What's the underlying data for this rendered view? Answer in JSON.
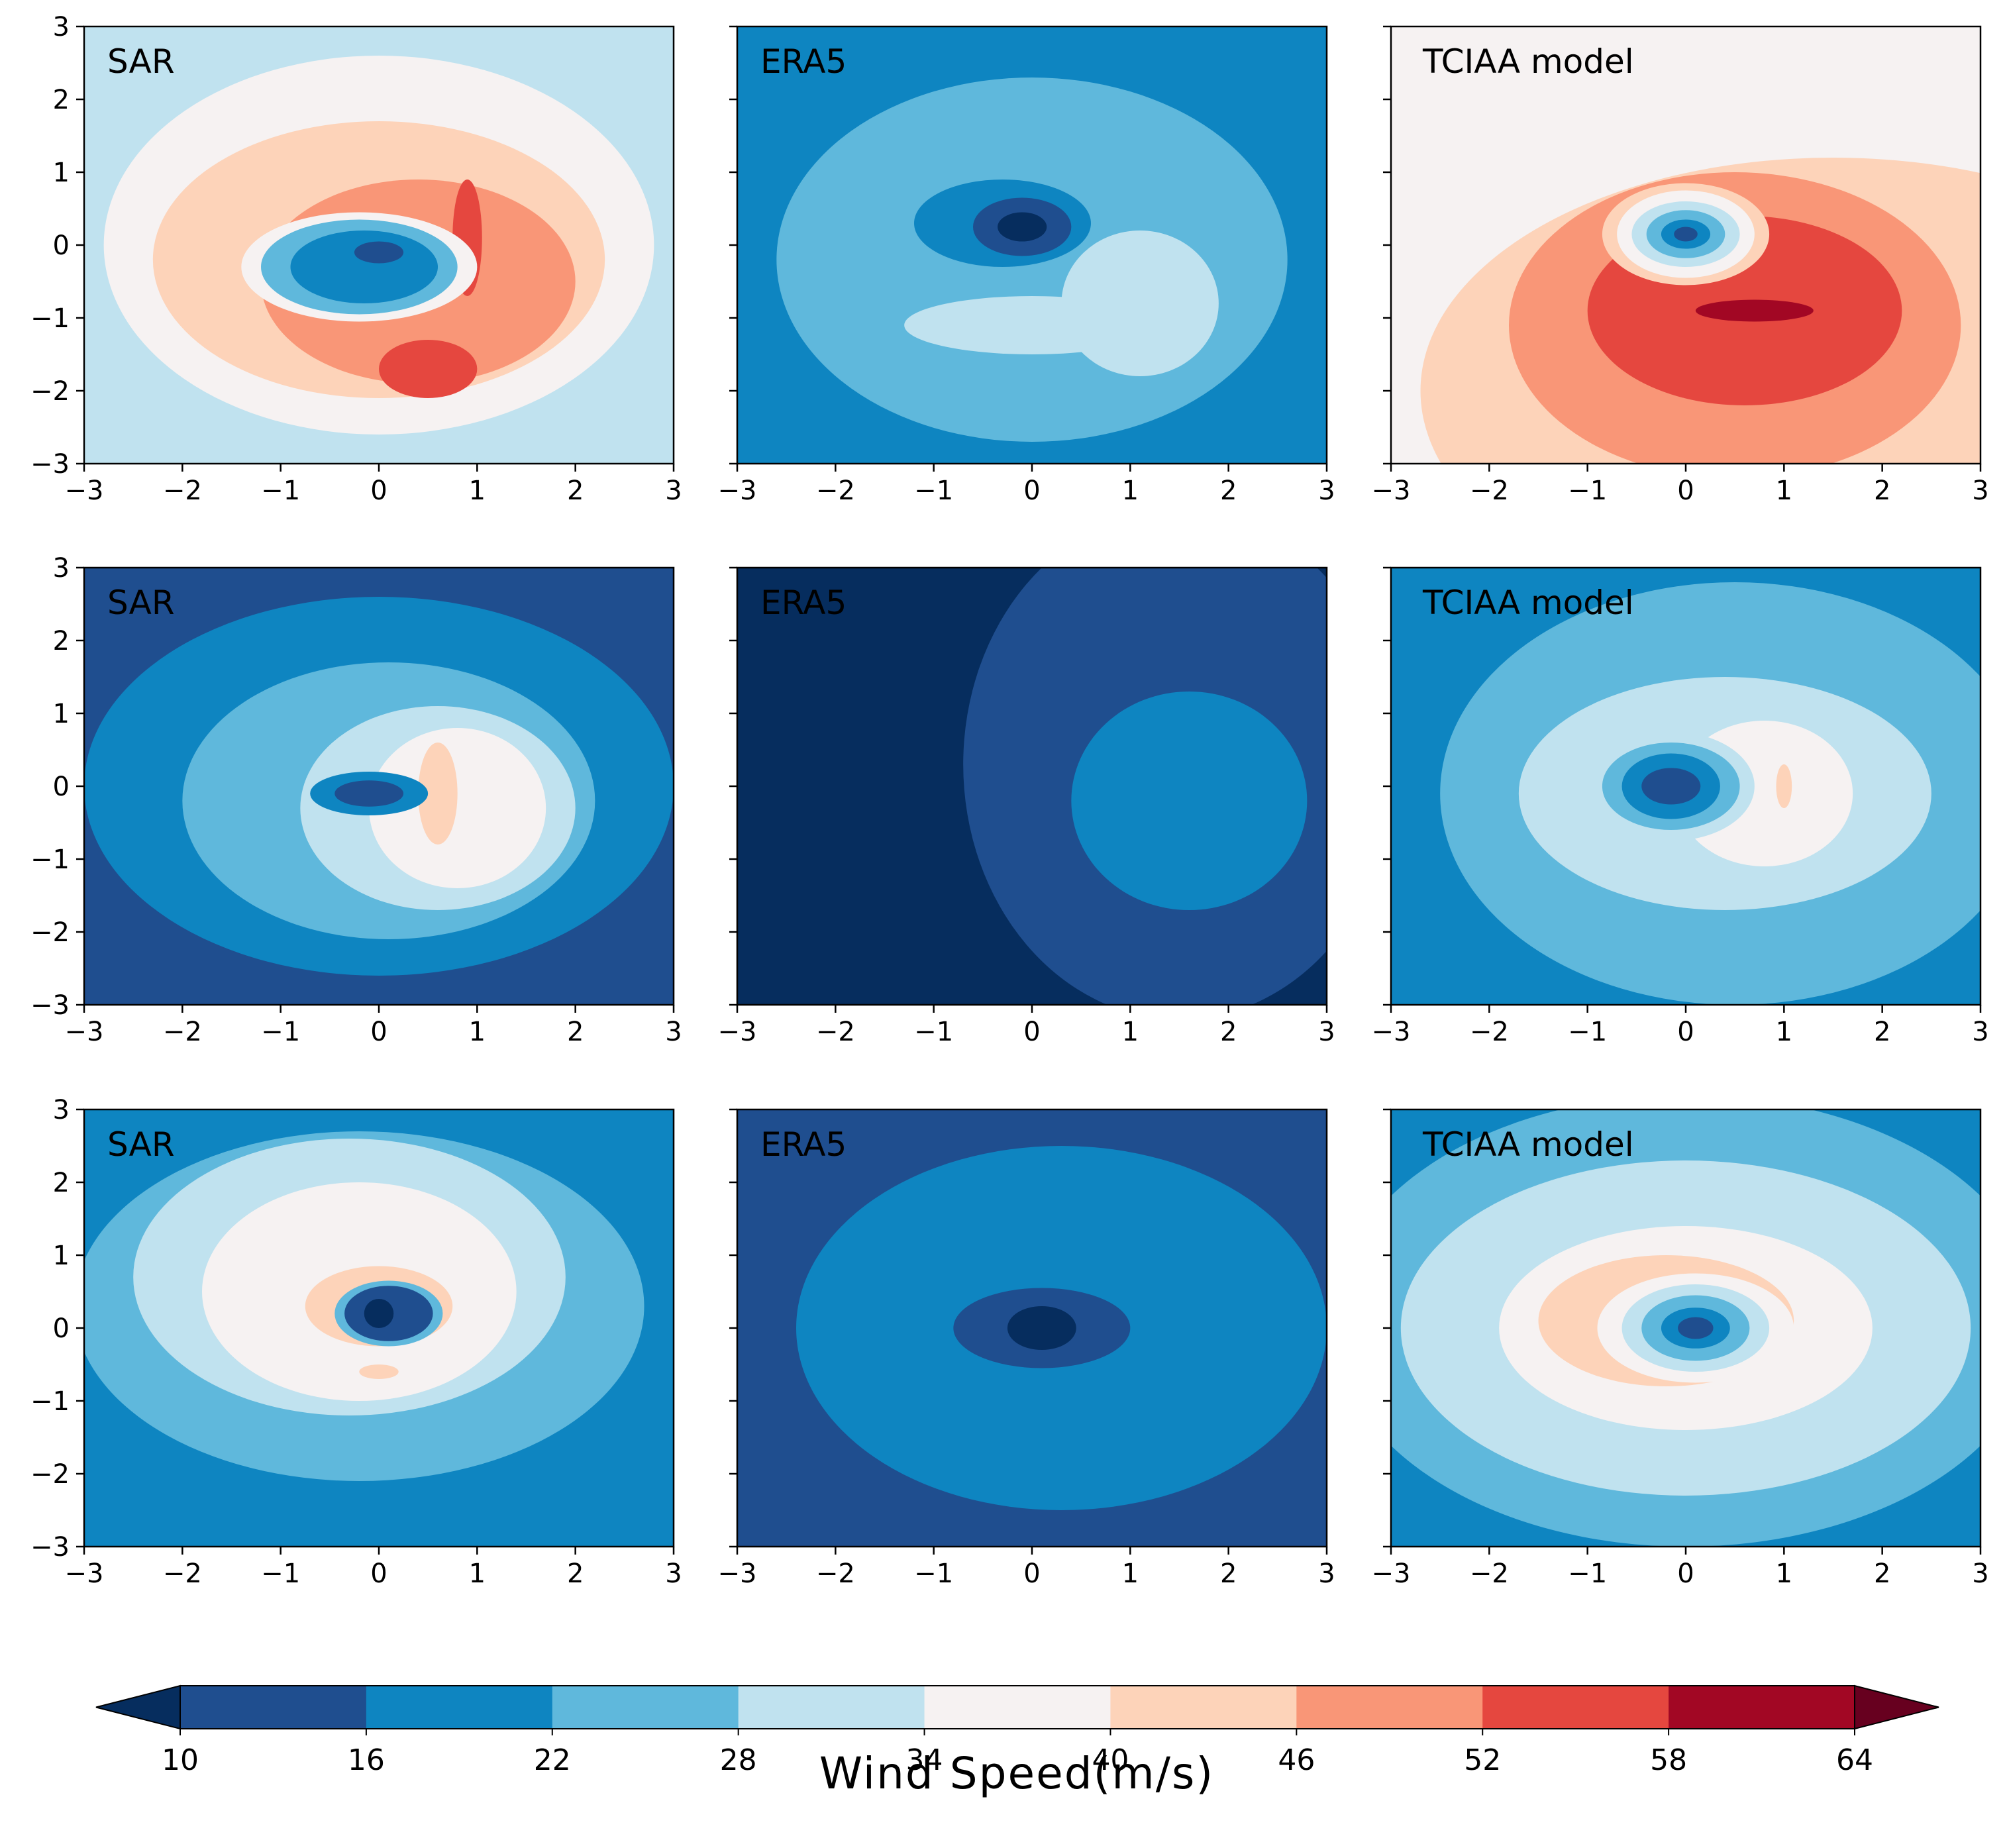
{
  "chart_data": {
    "type": "contourf",
    "title": "",
    "colorbar": {
      "label": "Wind Speed(m/s)",
      "levels": [
        10,
        16,
        22,
        28,
        34,
        40,
        46,
        52,
        58,
        64
      ],
      "colors": [
        "#1f4e8f",
        "#0e85c1",
        "#5fb8dc",
        "#c0e2ef",
        "#f6f2f2",
        "#fdd3b9",
        "#f99677",
        "#e5473f",
        "#a20724"
      ],
      "extend_low_color": "#062d5e",
      "extend_high_color": "#67001f",
      "extend": "both"
    },
    "panels": [
      {
        "row": 0,
        "col": 0,
        "label": "SAR",
        "xlim": [
          -3,
          3
        ],
        "ylim": [
          -3,
          3
        ],
        "xticks": [
          -3,
          -2,
          -1,
          0,
          1,
          2,
          3
        ],
        "yticks": [
          -3,
          -2,
          -1,
          0,
          1,
          2,
          3
        ],
        "background_band": 3,
        "blobs": [
          {
            "cx": 0.0,
            "cy": 0.0,
            "rx": 2.8,
            "ry": 2.6,
            "band": 4
          },
          {
            "cx": 0.0,
            "cy": -0.2,
            "rx": 2.3,
            "ry": 1.9,
            "band": 5
          },
          {
            "cx": 0.4,
            "cy": -0.5,
            "rx": 1.6,
            "ry": 1.4,
            "band": 6
          },
          {
            "cx": 0.5,
            "cy": -1.7,
            "rx": 0.5,
            "ry": 0.4,
            "band": 7
          },
          {
            "cx": 0.9,
            "cy": 0.1,
            "rx": 0.15,
            "ry": 0.8,
            "band": 7
          },
          {
            "cx": -0.2,
            "cy": -0.3,
            "rx": 1.2,
            "ry": 0.75,
            "band": 4
          },
          {
            "cx": -0.2,
            "cy": -0.3,
            "rx": 1.0,
            "ry": 0.65,
            "band": 2
          },
          {
            "cx": -0.15,
            "cy": -0.3,
            "rx": 0.75,
            "ry": 0.5,
            "band": 1
          },
          {
            "cx": 0.0,
            "cy": -0.1,
            "rx": 0.25,
            "ry": 0.15,
            "band": 0
          }
        ]
      },
      {
        "row": 0,
        "col": 1,
        "label": "ERA5",
        "xlim": [
          -3,
          3
        ],
        "ylim": [
          -3,
          3
        ],
        "xticks": [
          -3,
          -2,
          -1,
          0,
          1,
          2,
          3
        ],
        "yticks": [],
        "background_band": 1,
        "blobs": [
          {
            "cx": 0.0,
            "cy": -0.2,
            "rx": 2.6,
            "ry": 2.5,
            "band": 2
          },
          {
            "cx": 1.1,
            "cy": -0.8,
            "rx": 0.8,
            "ry": 1.0,
            "band": 3
          },
          {
            "cx": 0.0,
            "cy": -1.1,
            "rx": 1.3,
            "ry": 0.4,
            "band": 3
          },
          {
            "cx": -0.3,
            "cy": 0.3,
            "rx": 0.9,
            "ry": 0.6,
            "band": 1
          },
          {
            "cx": -0.1,
            "cy": 0.25,
            "rx": 0.5,
            "ry": 0.4,
            "band": 0
          },
          {
            "cx": -0.1,
            "cy": 0.25,
            "rx": 0.25,
            "ry": 0.2,
            "band": -1
          }
        ]
      },
      {
        "row": 0,
        "col": 2,
        "label": "TCIAA model",
        "xlim": [
          -3,
          3
        ],
        "ylim": [
          -3,
          3
        ],
        "xticks": [
          -3,
          -2,
          -1,
          0,
          1,
          2,
          3
        ],
        "yticks": [],
        "background_band": 4,
        "blobs": [
          {
            "cx": 1.5,
            "cy": -2.0,
            "rx": 4.2,
            "ry": 3.2,
            "band": 5
          },
          {
            "cx": 0.5,
            "cy": -1.1,
            "rx": 2.3,
            "ry": 2.1,
            "band": 6
          },
          {
            "cx": 0.6,
            "cy": -0.9,
            "rx": 1.6,
            "ry": 1.3,
            "band": 7
          },
          {
            "cx": 0.7,
            "cy": -0.9,
            "rx": 0.6,
            "ry": 0.15,
            "band": 8
          },
          {
            "cx": 0.0,
            "cy": 0.15,
            "rx": 0.85,
            "ry": 0.7,
            "band": 5
          },
          {
            "cx": 0.0,
            "cy": 0.15,
            "rx": 0.7,
            "ry": 0.6,
            "band": 4
          },
          {
            "cx": 0.0,
            "cy": 0.15,
            "rx": 0.55,
            "ry": 0.45,
            "band": 3
          },
          {
            "cx": 0.0,
            "cy": 0.15,
            "rx": 0.4,
            "ry": 0.33,
            "band": 2
          },
          {
            "cx": 0.0,
            "cy": 0.15,
            "rx": 0.25,
            "ry": 0.2,
            "band": 1
          },
          {
            "cx": 0.0,
            "cy": 0.15,
            "rx": 0.12,
            "ry": 0.1,
            "band": 0
          }
        ]
      },
      {
        "row": 1,
        "col": 0,
        "label": "SAR",
        "xlim": [
          -3,
          3
        ],
        "ylim": [
          -3,
          3
        ],
        "xticks": [
          -3,
          -2,
          -1,
          0,
          1,
          2,
          3
        ],
        "yticks": [
          -3,
          -2,
          -1,
          0,
          1,
          2,
          3
        ],
        "background_band": 0,
        "blobs": [
          {
            "cx": 0.0,
            "cy": 0.0,
            "rx": 3.0,
            "ry": 2.6,
            "band": 1
          },
          {
            "cx": 0.1,
            "cy": -0.2,
            "rx": 2.1,
            "ry": 1.9,
            "band": 2
          },
          {
            "cx": 0.6,
            "cy": -0.3,
            "rx": 1.4,
            "ry": 1.4,
            "band": 3
          },
          {
            "cx": 0.8,
            "cy": -0.3,
            "rx": 0.9,
            "ry": 1.1,
            "band": 4
          },
          {
            "cx": 0.6,
            "cy": -0.1,
            "rx": 0.2,
            "ry": 0.7,
            "band": 5
          },
          {
            "cx": -0.1,
            "cy": -0.1,
            "rx": 0.6,
            "ry": 0.3,
            "band": 1
          },
          {
            "cx": -0.1,
            "cy": -0.1,
            "rx": 0.35,
            "ry": 0.18,
            "band": 0
          }
        ]
      },
      {
        "row": 1,
        "col": 1,
        "label": "ERA5",
        "xlim": [
          -3,
          3
        ],
        "ylim": [
          -3,
          3
        ],
        "xticks": [
          -3,
          -2,
          -1,
          0,
          1,
          2,
          3
        ],
        "yticks": [],
        "background_band": 0,
        "blobs": [
          {
            "cx": 0.0,
            "cy": 0.0,
            "rx": 10.0,
            "ry": 10.0,
            "band": -1
          },
          {
            "cx": 1.5,
            "cy": 0.3,
            "rx": 2.2,
            "ry": 3.5,
            "band": 0
          },
          {
            "cx": 1.6,
            "cy": -0.2,
            "rx": 1.2,
            "ry": 1.5,
            "band": 1
          }
        ]
      },
      {
        "row": 1,
        "col": 2,
        "label": "TCIAA model",
        "xlim": [
          -3,
          3
        ],
        "ylim": [
          -3,
          3
        ],
        "xticks": [
          -3,
          -2,
          -1,
          0,
          1,
          2,
          3
        ],
        "yticks": [],
        "background_band": 1,
        "blobs": [
          {
            "cx": 0.5,
            "cy": -0.1,
            "rx": 3.0,
            "ry": 2.9,
            "band": 2
          },
          {
            "cx": 0.4,
            "cy": -0.1,
            "rx": 2.1,
            "ry": 1.6,
            "band": 3
          },
          {
            "cx": 0.8,
            "cy": -0.1,
            "rx": 0.9,
            "ry": 1.0,
            "band": 4
          },
          {
            "cx": 1.0,
            "cy": 0.0,
            "rx": 0.08,
            "ry": 0.3,
            "band": 5
          },
          {
            "cx": -0.15,
            "cy": 0.0,
            "rx": 0.85,
            "ry": 0.75,
            "band": 3
          },
          {
            "cx": -0.15,
            "cy": 0.0,
            "rx": 0.7,
            "ry": 0.6,
            "band": 2
          },
          {
            "cx": -0.15,
            "cy": 0.0,
            "rx": 0.5,
            "ry": 0.45,
            "band": 1
          },
          {
            "cx": -0.15,
            "cy": 0.0,
            "rx": 0.3,
            "ry": 0.25,
            "band": 0
          }
        ]
      },
      {
        "row": 2,
        "col": 0,
        "label": "SAR",
        "xlim": [
          -3,
          3
        ],
        "ylim": [
          -3,
          3
        ],
        "xticks": [
          -3,
          -2,
          -1,
          0,
          1,
          2,
          3
        ],
        "yticks": [
          -3,
          -2,
          -1,
          0,
          1,
          2,
          3
        ],
        "background_band": 1,
        "blobs": [
          {
            "cx": -0.2,
            "cy": 0.3,
            "rx": 2.9,
            "ry": 2.4,
            "band": 2
          },
          {
            "cx": -0.3,
            "cy": 0.7,
            "rx": 2.2,
            "ry": 1.9,
            "band": 3
          },
          {
            "cx": -0.2,
            "cy": 0.5,
            "rx": 1.6,
            "ry": 1.5,
            "band": 4
          },
          {
            "cx": 0.0,
            "cy": 0.3,
            "rx": 0.75,
            "ry": 0.55,
            "band": 5
          },
          {
            "cx": 0.0,
            "cy": -0.6,
            "rx": 0.2,
            "ry": 0.1,
            "band": 5
          },
          {
            "cx": 0.1,
            "cy": 0.2,
            "rx": 0.55,
            "ry": 0.45,
            "band": 2
          },
          {
            "cx": 0.1,
            "cy": 0.2,
            "rx": 0.45,
            "ry": 0.38,
            "band": 0
          },
          {
            "cx": 0.0,
            "cy": 0.2,
            "rx": 0.15,
            "ry": 0.2,
            "band": -1
          }
        ]
      },
      {
        "row": 2,
        "col": 1,
        "label": "ERA5",
        "xlim": [
          -3,
          3
        ],
        "ylim": [
          -3,
          3
        ],
        "xticks": [
          -3,
          -2,
          -1,
          0,
          1,
          2,
          3
        ],
        "yticks": [],
        "background_band": 0,
        "blobs": [
          {
            "cx": 0.3,
            "cy": 0.0,
            "rx": 2.7,
            "ry": 2.5,
            "band": 1
          },
          {
            "cx": 0.1,
            "cy": 0.0,
            "rx": 0.9,
            "ry": 0.55,
            "band": 0
          },
          {
            "cx": 0.1,
            "cy": 0.0,
            "rx": 0.35,
            "ry": 0.3,
            "band": -1
          }
        ]
      },
      {
        "row": 2,
        "col": 2,
        "label": "TCIAA model",
        "xlim": [
          -3,
          3
        ],
        "ylim": [
          -3,
          3
        ],
        "xticks": [
          -3,
          -2,
          -1,
          0,
          1,
          2,
          3
        ],
        "yticks": [],
        "background_band": 1,
        "blobs": [
          {
            "cx": 0.0,
            "cy": 0.1,
            "rx": 3.6,
            "ry": 3.1,
            "band": 2
          },
          {
            "cx": 0.0,
            "cy": 0.0,
            "rx": 2.9,
            "ry": 2.3,
            "band": 3
          },
          {
            "cx": 0.0,
            "cy": 0.0,
            "rx": 1.9,
            "ry": 1.4,
            "band": 4
          },
          {
            "cx": -0.2,
            "cy": 0.1,
            "rx": 1.3,
            "ry": 0.9,
            "band": 5
          },
          {
            "cx": 0.1,
            "cy": 0.0,
            "rx": 1.0,
            "ry": 0.75,
            "band": 4
          },
          {
            "cx": 0.1,
            "cy": 0.0,
            "rx": 0.75,
            "ry": 0.6,
            "band": 3
          },
          {
            "cx": 0.1,
            "cy": 0.0,
            "rx": 0.55,
            "ry": 0.45,
            "band": 2
          },
          {
            "cx": 0.1,
            "cy": 0.0,
            "rx": 0.35,
            "ry": 0.28,
            "band": 1
          },
          {
            "cx": 0.1,
            "cy": 0.0,
            "rx": 0.18,
            "ry": 0.15,
            "band": 0
          }
        ]
      }
    ]
  }
}
